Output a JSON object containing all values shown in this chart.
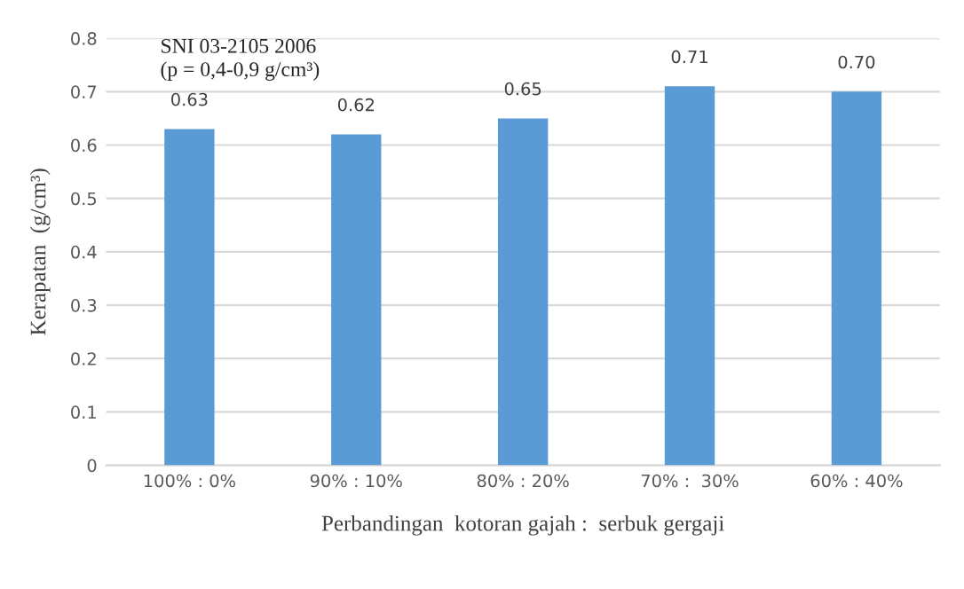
{
  "chart_data": {
    "type": "bar",
    "categories": [
      "100% : 0%",
      "90% : 10%",
      "80% : 20%",
      "70% :  30%",
      "60% : 40%"
    ],
    "values": [
      0.63,
      0.62,
      0.65,
      0.71,
      0.7
    ],
    "color": "#5b9bd5",
    "value_labels": [
      "0.63",
      "0.62",
      "0.65",
      "0.71",
      "0.70"
    ],
    "xlabel": "Perbandingan  kotoran gajah :  serbuk gergaji",
    "ylabel": "Kerapatan  (g/cm³)",
    "annotations": [
      "SNI 03-2105 2006\n(p = 0,4-0,9 g/cm³)"
    ],
    "ylim": [
      0,
      0.8
    ],
    "yticks": [
      {
        "value": 0,
        "label": "0"
      },
      0.1,
      0.2,
      0.3,
      0.4,
      0.5,
      0.6,
      0.7,
      0.8
    ],
    "grid": "y"
  }
}
